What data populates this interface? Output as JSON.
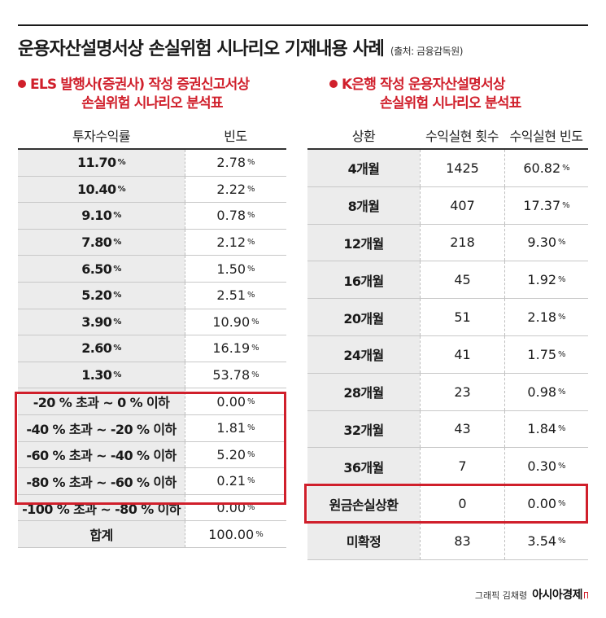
{
  "title": "운용자산설명서상 손실위험 시나리오 기재내용 사례",
  "source": "(출처: 금융감독원)",
  "left": {
    "subtitle_line1": "ELS 발행사(증권사) 작성 증권신고서상",
    "subtitle_line2": "손실위험 시나리오 분석표",
    "headers": [
      "투자수익률",
      "빈도"
    ],
    "rows": [
      {
        "label": "11.70",
        "label_pct": "%",
        "freq": "2.78",
        "freq_pct": "%"
      },
      {
        "label": "10.40",
        "label_pct": "%",
        "freq": "2.22",
        "freq_pct": "%"
      },
      {
        "label": "9.10",
        "label_pct": "%",
        "freq": "0.78",
        "freq_pct": "%"
      },
      {
        "label": "7.80",
        "label_pct": "%",
        "freq": "2.12",
        "freq_pct": "%"
      },
      {
        "label": "6.50",
        "label_pct": "%",
        "freq": "1.50",
        "freq_pct": "%"
      },
      {
        "label": "5.20",
        "label_pct": "%",
        "freq": "2.51",
        "freq_pct": "%"
      },
      {
        "label": "3.90",
        "label_pct": "%",
        "freq": "10.90",
        "freq_pct": "%"
      },
      {
        "label": "2.60",
        "label_pct": "%",
        "freq": "16.19",
        "freq_pct": "%"
      },
      {
        "label": "1.30",
        "label_pct": "%",
        "freq": "53.78",
        "freq_pct": "%"
      },
      {
        "label": "-20 % 초과 ~ 0 % 이하",
        "label_pct": "",
        "freq": "0.00",
        "freq_pct": "%"
      },
      {
        "label": "-40 % 초과 ~ -20 % 이하",
        "label_pct": "",
        "freq": "1.81",
        "freq_pct": "%"
      },
      {
        "label": "-60 % 초과 ~ -40 % 이하",
        "label_pct": "",
        "freq": "5.20",
        "freq_pct": "%"
      },
      {
        "label": "-80 % 초과 ~ -60 % 이하",
        "label_pct": "",
        "freq": "0.21",
        "freq_pct": "%"
      },
      {
        "label": "-100 % 초과 ~ -80 % 이하",
        "label_pct": "",
        "freq": "0.00",
        "freq_pct": "%"
      },
      {
        "label": "합계",
        "label_pct": "",
        "freq": "100.00",
        "freq_pct": "%"
      }
    ]
  },
  "right": {
    "subtitle_line1": "K은행 작성 운용자산설명서상",
    "subtitle_line2": "손실위험 시나리오 분석표",
    "headers": [
      "상환",
      "수익실현 횟수",
      "수익실현 빈도"
    ],
    "rows": [
      {
        "label": "4개월",
        "count": "1425",
        "freq": "60.82",
        "freq_pct": "%"
      },
      {
        "label": "8개월",
        "count": "407",
        "freq": "17.37",
        "freq_pct": "%"
      },
      {
        "label": "12개월",
        "count": "218",
        "freq": "9.30",
        "freq_pct": "%"
      },
      {
        "label": "16개월",
        "count": "45",
        "freq": "1.92",
        "freq_pct": "%"
      },
      {
        "label": "20개월",
        "count": "51",
        "freq": "2.18",
        "freq_pct": "%"
      },
      {
        "label": "24개월",
        "count": "41",
        "freq": "1.75",
        "freq_pct": "%"
      },
      {
        "label": "28개월",
        "count": "23",
        "freq": "0.98",
        "freq_pct": "%"
      },
      {
        "label": "32개월",
        "count": "43",
        "freq": "1.84",
        "freq_pct": "%"
      },
      {
        "label": "36개월",
        "count": "7",
        "freq": "0.30",
        "freq_pct": "%"
      },
      {
        "label": "원금손실상환",
        "count": "0",
        "freq": "0.00",
        "freq_pct": "%"
      },
      {
        "label": "미확정",
        "count": "83",
        "freq": "3.54",
        "freq_pct": "%"
      }
    ]
  },
  "credit": {
    "text": "그래픽 김채령",
    "brand": "아시아경제"
  },
  "colors": {
    "accent": "#d01f2b",
    "label_bg": "#ececec",
    "text": "#1a1a1a"
  }
}
